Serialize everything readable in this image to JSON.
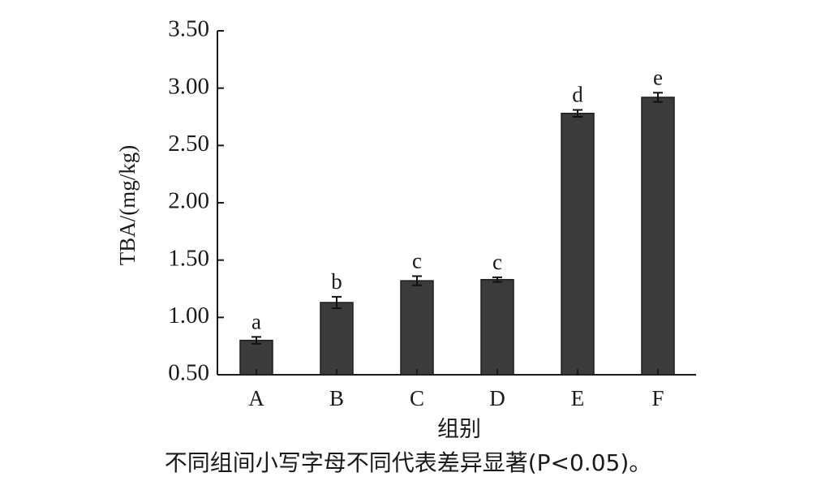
{
  "chart_data": {
    "type": "bar",
    "categories": [
      "A",
      "B",
      "C",
      "D",
      "E",
      "F"
    ],
    "values": [
      0.8,
      1.13,
      1.32,
      1.33,
      2.78,
      2.92
    ],
    "errors": [
      0.03,
      0.05,
      0.04,
      0.02,
      0.03,
      0.04
    ],
    "significance_letters": [
      "a",
      "b",
      "c",
      "c",
      "d",
      "e"
    ],
    "ylabel": "TBA/(mg/kg)",
    "xlabel": "组别",
    "ylim": [
      0.5,
      3.5
    ],
    "yticks": [
      "0.50",
      "1.00",
      "1.50",
      "2.00",
      "2.50",
      "3.00",
      "3.50"
    ],
    "grid": false,
    "bar_color": "#3b3b3b",
    "note": "不同组间小写字母不同代表差异显著(P<0.05)。"
  }
}
